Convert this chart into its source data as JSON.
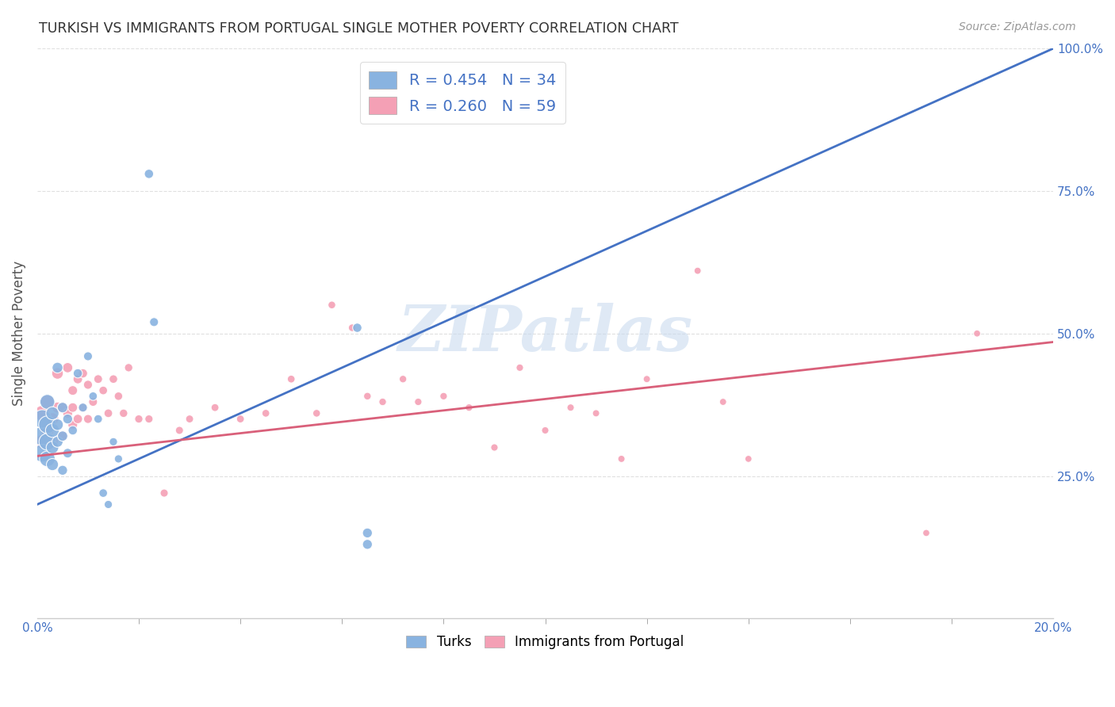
{
  "title": "TURKISH VS IMMIGRANTS FROM PORTUGAL SINGLE MOTHER POVERTY CORRELATION CHART",
  "source": "Source: ZipAtlas.com",
  "ylabel": "Single Mother Poverty",
  "x_min": 0.0,
  "x_max": 0.2,
  "y_min": 0.0,
  "y_max": 1.0,
  "turks_color": "#89b3e0",
  "portugal_color": "#f4a0b5",
  "turks_line_color": "#4472c4",
  "portugal_line_color": "#d9607a",
  "turks_R": 0.454,
  "turks_N": 34,
  "portugal_R": 0.26,
  "portugal_N": 59,
  "watermark": "ZIPatlas",
  "background_color": "#ffffff",
  "grid_color": "#e0e0e0",
  "turks_line_x0": 0.0,
  "turks_line_y0": 0.2,
  "turks_line_x1": 0.2,
  "turks_line_y1": 1.0,
  "portugal_line_x0": 0.0,
  "portugal_line_y0": 0.285,
  "portugal_line_x1": 0.2,
  "portugal_line_y1": 0.485,
  "turks_x": [
    0.001,
    0.001,
    0.001,
    0.002,
    0.002,
    0.002,
    0.002,
    0.003,
    0.003,
    0.003,
    0.003,
    0.004,
    0.004,
    0.004,
    0.005,
    0.005,
    0.005,
    0.006,
    0.006,
    0.007,
    0.008,
    0.009,
    0.01,
    0.011,
    0.012,
    0.013,
    0.014,
    0.015,
    0.016,
    0.022,
    0.023,
    0.063,
    0.065,
    0.065
  ],
  "turks_y": [
    0.32,
    0.35,
    0.29,
    0.34,
    0.31,
    0.28,
    0.38,
    0.33,
    0.36,
    0.3,
    0.27,
    0.34,
    0.31,
    0.44,
    0.37,
    0.32,
    0.26,
    0.35,
    0.29,
    0.33,
    0.43,
    0.37,
    0.46,
    0.39,
    0.35,
    0.22,
    0.2,
    0.31,
    0.28,
    0.78,
    0.52,
    0.51,
    0.13,
    0.15
  ],
  "portugal_x": [
    0.001,
    0.001,
    0.002,
    0.002,
    0.003,
    0.003,
    0.004,
    0.004,
    0.005,
    0.005,
    0.006,
    0.006,
    0.007,
    0.007,
    0.007,
    0.008,
    0.008,
    0.009,
    0.009,
    0.01,
    0.01,
    0.011,
    0.012,
    0.013,
    0.014,
    0.015,
    0.016,
    0.017,
    0.018,
    0.02,
    0.022,
    0.025,
    0.028,
    0.03,
    0.035,
    0.04,
    0.045,
    0.05,
    0.055,
    0.058,
    0.062,
    0.065,
    0.068,
    0.072,
    0.075,
    0.08,
    0.085,
    0.09,
    0.095,
    0.1,
    0.105,
    0.11,
    0.115,
    0.12,
    0.13,
    0.135,
    0.14,
    0.175,
    0.185
  ],
  "portugal_y": [
    0.36,
    0.31,
    0.38,
    0.33,
    0.35,
    0.31,
    0.43,
    0.37,
    0.37,
    0.32,
    0.44,
    0.36,
    0.34,
    0.4,
    0.37,
    0.42,
    0.35,
    0.43,
    0.37,
    0.41,
    0.35,
    0.38,
    0.42,
    0.4,
    0.36,
    0.42,
    0.39,
    0.36,
    0.44,
    0.35,
    0.35,
    0.22,
    0.33,
    0.35,
    0.37,
    0.35,
    0.36,
    0.42,
    0.36,
    0.55,
    0.51,
    0.39,
    0.38,
    0.42,
    0.38,
    0.39,
    0.37,
    0.3,
    0.44,
    0.33,
    0.37,
    0.36,
    0.28,
    0.42,
    0.61,
    0.38,
    0.28,
    0.15,
    0.5
  ],
  "turks_sizes": [
    300,
    280,
    260,
    250,
    230,
    200,
    180,
    160,
    140,
    130,
    120,
    110,
    100,
    95,
    90,
    85,
    80,
    80,
    75,
    70,
    70,
    65,
    65,
    60,
    60,
    60,
    55,
    55,
    55,
    70,
    65,
    70,
    80,
    80
  ],
  "portugal_sizes": [
    200,
    180,
    160,
    150,
    130,
    120,
    110,
    100,
    95,
    90,
    85,
    80,
    78,
    76,
    75,
    74,
    72,
    70,
    68,
    66,
    65,
    64,
    62,
    60,
    60,
    59,
    58,
    57,
    56,
    55,
    54,
    53,
    52,
    51,
    50,
    50,
    49,
    49,
    48,
    48,
    47,
    47,
    46,
    46,
    45,
    45,
    45,
    44,
    44,
    43,
    43,
    42,
    42,
    42,
    41,
    41,
    40,
    40,
    40
  ]
}
